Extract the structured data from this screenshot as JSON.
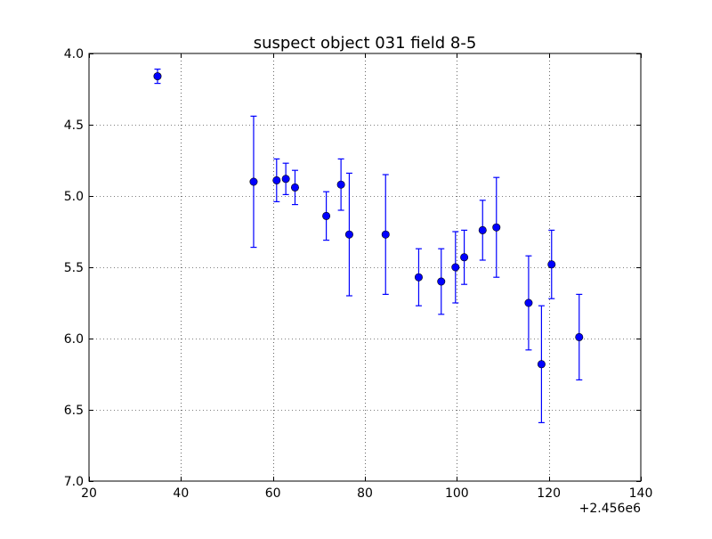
{
  "chart_data": {
    "type": "scatter",
    "title": "suspect object 031 field 8-5",
    "xlabel": "",
    "ylabel": "",
    "x_offset_label": "+2.456e6",
    "xlim": [
      20,
      140
    ],
    "ylim": [
      7.0,
      4.0
    ],
    "y_inverted": true,
    "grid": true,
    "grid_style": "dotted",
    "marker_color": "#0000ff",
    "errorbar_color": "#0000ff",
    "x_ticks": [
      20,
      40,
      60,
      80,
      100,
      120,
      140
    ],
    "x_tick_labels": [
      "20",
      "40",
      "60",
      "80",
      "100",
      "120",
      "140"
    ],
    "y_ticks": [
      4.0,
      4.5,
      5.0,
      5.5,
      6.0,
      6.5,
      7.0
    ],
    "y_tick_labels": [
      "4.0",
      "4.5",
      "5.0",
      "5.5",
      "6.0",
      "6.5",
      "7.0"
    ],
    "points": [
      {
        "x": 34.9,
        "y": 4.16,
        "err": 0.05
      },
      {
        "x": 55.8,
        "y": 4.9,
        "err": 0.46
      },
      {
        "x": 60.8,
        "y": 4.89,
        "err": 0.15
      },
      {
        "x": 62.8,
        "y": 4.88,
        "err": 0.11
      },
      {
        "x": 64.8,
        "y": 4.94,
        "err": 0.12
      },
      {
        "x": 71.6,
        "y": 5.14,
        "err": 0.17
      },
      {
        "x": 74.8,
        "y": 4.92,
        "err": 0.18
      },
      {
        "x": 76.6,
        "y": 5.27,
        "err": 0.43
      },
      {
        "x": 84.5,
        "y": 5.27,
        "err": 0.42
      },
      {
        "x": 91.7,
        "y": 5.57,
        "err": 0.2
      },
      {
        "x": 96.6,
        "y": 5.6,
        "err": 0.23
      },
      {
        "x": 99.7,
        "y": 5.5,
        "err": 0.25
      },
      {
        "x": 101.6,
        "y": 5.43,
        "err": 0.19
      },
      {
        "x": 105.6,
        "y": 5.24,
        "err": 0.21
      },
      {
        "x": 108.6,
        "y": 5.22,
        "err": 0.35
      },
      {
        "x": 115.6,
        "y": 5.75,
        "err": 0.33
      },
      {
        "x": 118.4,
        "y": 6.18,
        "err": 0.41
      },
      {
        "x": 120.6,
        "y": 5.48,
        "err": 0.24
      },
      {
        "x": 126.6,
        "y": 5.99,
        "err": 0.3
      }
    ]
  }
}
